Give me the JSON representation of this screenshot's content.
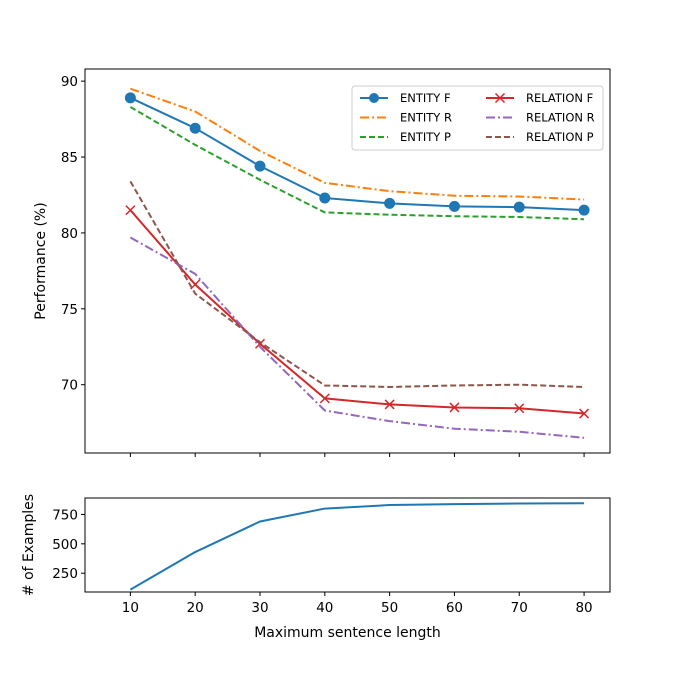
{
  "chart_data": [
    {
      "type": "line",
      "x": [
        10,
        20,
        30,
        40,
        50,
        60,
        70,
        80
      ],
      "xlim": [
        3,
        84
      ],
      "ylim": [
        65.5,
        90.8
      ],
      "yticks": [
        70,
        75,
        80,
        85,
        90
      ],
      "ylabel": "Performance (%)",
      "xlabel": "",
      "grid": false,
      "legend": "top-right",
      "series": [
        {
          "name": "ENTITY F",
          "color": "#1f77b4",
          "style": "solid",
          "marker": "circle",
          "values": [
            88.9,
            86.9,
            84.4,
            82.3,
            81.95,
            81.75,
            81.7,
            81.5
          ]
        },
        {
          "name": "ENTITY R",
          "color": "#ff7f0e",
          "style": "dashdot",
          "marker": "",
          "values": [
            89.5,
            88.0,
            85.4,
            83.3,
            82.75,
            82.45,
            82.4,
            82.2
          ]
        },
        {
          "name": "ENTITY P",
          "color": "#2ca02c",
          "style": "dashed",
          "marker": "",
          "values": [
            88.3,
            85.8,
            83.5,
            81.35,
            81.2,
            81.1,
            81.05,
            80.9
          ]
        },
        {
          "name": "RELATION F",
          "color": "#d62728",
          "style": "solid",
          "marker": "x",
          "values": [
            81.5,
            76.6,
            72.7,
            69.1,
            68.7,
            68.5,
            68.45,
            68.1
          ]
        },
        {
          "name": "RELATION R",
          "color": "#9467bd",
          "style": "dashdot",
          "marker": "",
          "values": [
            79.7,
            77.3,
            72.5,
            68.3,
            67.6,
            67.1,
            66.9,
            66.5
          ]
        },
        {
          "name": "RELATION P",
          "color": "#8c564b",
          "style": "dashed",
          "marker": "",
          "values": [
            83.4,
            76.0,
            72.8,
            69.95,
            69.85,
            69.95,
            70.0,
            69.85
          ]
        }
      ]
    },
    {
      "type": "line",
      "x": [
        10,
        20,
        30,
        40,
        50,
        60,
        70,
        80
      ],
      "xlim": [
        3,
        84
      ],
      "ylim": [
        90,
        890
      ],
      "yticks": [
        250,
        500,
        750
      ],
      "xticks": [
        10,
        20,
        30,
        40,
        50,
        60,
        70,
        80
      ],
      "ylabel": "# of Examples",
      "xlabel": "Maximum sentence length",
      "grid": false,
      "series": [
        {
          "name": "",
          "color": "#1f77b4",
          "style": "solid",
          "marker": "",
          "values": [
            110,
            430,
            690,
            800,
            830,
            838,
            843,
            845
          ]
        }
      ]
    }
  ]
}
